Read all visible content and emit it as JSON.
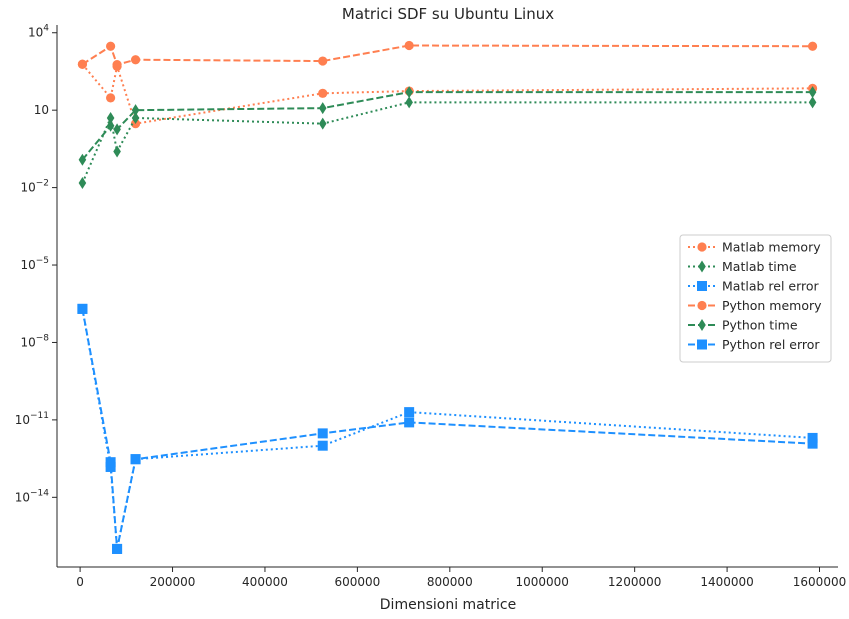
{
  "chart_data": {
    "type": "line",
    "title": "Matrici SDF su Ubuntu Linux",
    "xlabel": "Dimensioni matrice",
    "ylabel": "",
    "yscale": "log",
    "xlim": [
      -50000,
      1640000
    ],
    "ylim_exp": [
      -16.7,
      4.3
    ],
    "x_ticks": [
      0,
      200000,
      400000,
      600000,
      800000,
      1000000,
      1200000,
      1400000,
      1600000
    ],
    "x_tick_labels": [
      "0",
      "200000",
      "400000",
      "600000",
      "800000",
      "1000000",
      "1200000",
      "1400000",
      "1600000"
    ],
    "y_ticks_exp": [
      4,
      1,
      -2,
      -5,
      -8,
      -11,
      -14
    ],
    "y_tick_labels": [
      {
        "base": "10",
        "exp": "4"
      },
      {
        "base": "10",
        "exp": ""
      },
      {
        "base": "10",
        "exp": "−2"
      },
      {
        "base": "10",
        "exp": "−5"
      },
      {
        "base": "10",
        "exp": "−8"
      },
      {
        "base": "10",
        "exp": "−11"
      },
      {
        "base": "10",
        "exp": "−14"
      }
    ],
    "grid": false,
    "legend_position": "right",
    "series": [
      {
        "name": "Matlab memory",
        "color": "#ff7f50",
        "marker": "circle",
        "linestyle": "dotted",
        "points": [
          [
            5000,
            600
          ],
          [
            66000,
            30
          ],
          [
            80000,
            500
          ],
          [
            120000,
            3
          ],
          [
            525000,
            45
          ],
          [
            712000,
            55
          ],
          [
            1585000,
            70
          ]
        ]
      },
      {
        "name": "Matlab time",
        "color": "#2e8b57",
        "marker": "diamond",
        "linestyle": "dotted",
        "points": [
          [
            5000,
            0.015
          ],
          [
            66000,
            5
          ],
          [
            80000,
            0.25
          ],
          [
            120000,
            5
          ],
          [
            525000,
            3
          ],
          [
            712000,
            20
          ],
          [
            1585000,
            20
          ]
        ]
      },
      {
        "name": "Matlab rel error",
        "color": "#1e90ff",
        "marker": "square",
        "linestyle": "dotted",
        "points": [
          [
            5000,
            2e-07
          ],
          [
            66000,
            1.5e-13
          ],
          [
            80000,
            1e-16
          ],
          [
            120000,
            3e-13
          ],
          [
            525000,
            1e-12
          ],
          [
            712000,
            2e-11
          ],
          [
            1585000,
            2e-12
          ]
        ]
      },
      {
        "name": "Python memory",
        "color": "#ff7f50",
        "marker": "circle",
        "linestyle": "dashed",
        "points": [
          [
            5000,
            600
          ],
          [
            66000,
            3000
          ],
          [
            80000,
            580
          ],
          [
            120000,
            900
          ],
          [
            525000,
            800
          ],
          [
            712000,
            3200
          ],
          [
            1585000,
            3000
          ]
        ]
      },
      {
        "name": "Python time",
        "color": "#2e8b57",
        "marker": "diamond",
        "linestyle": "dashed",
        "points": [
          [
            5000,
            0.12
          ],
          [
            66000,
            2.5
          ],
          [
            80000,
            1.8
          ],
          [
            120000,
            10
          ],
          [
            525000,
            12
          ],
          [
            712000,
            50
          ],
          [
            1585000,
            50
          ]
        ]
      },
      {
        "name": "Python rel error",
        "color": "#1e90ff",
        "marker": "square",
        "linestyle": "dashed",
        "points": [
          [
            5000,
            2e-07
          ],
          [
            66000,
            2.3e-13
          ],
          [
            80000,
            1e-16
          ],
          [
            120000,
            3e-13
          ],
          [
            525000,
            3e-12
          ],
          [
            712000,
            8e-12
          ],
          [
            1585000,
            1.2e-12
          ]
        ]
      }
    ]
  }
}
